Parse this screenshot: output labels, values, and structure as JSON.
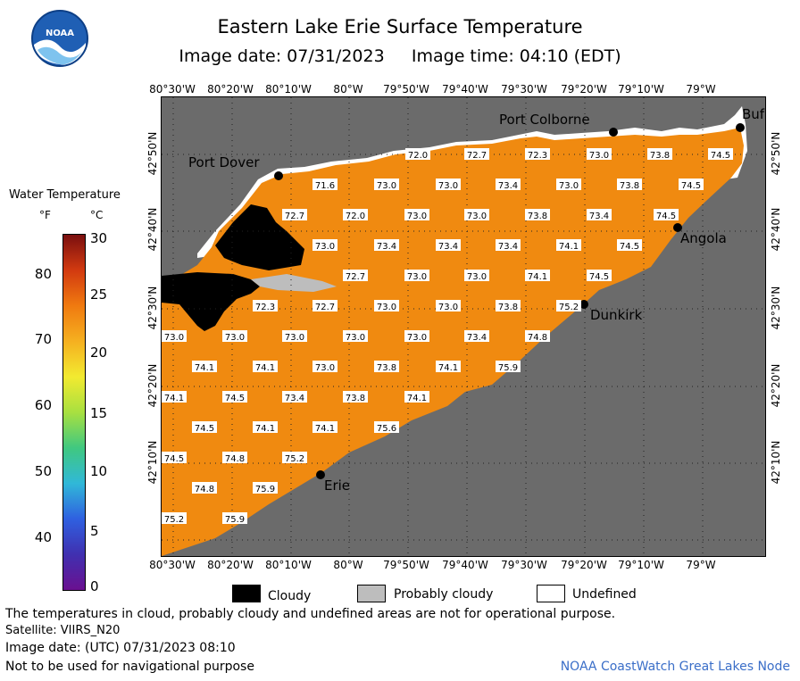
{
  "header": {
    "title": "Eastern Lake Erie Surface Temperature",
    "subtitle": "Image date: 07/31/2023     Image time: 04:10 (EDT)",
    "logo_text": "NOAA"
  },
  "axes": {
    "lon_ticks": [
      "80°30'W",
      "80°20'W",
      "80°10'W",
      "80°W",
      "79°50'W",
      "79°40'W",
      "79°30'W",
      "79°20'W",
      "79°10'W",
      "79°W"
    ],
    "lat_ticks": [
      "42°50'N",
      "42°40'N",
      "42°30'N",
      "42°20'N",
      "42°10'N"
    ]
  },
  "cities": {
    "port_dover": "Port Dover",
    "port_colborne": "Port Colborne",
    "buffalo": "Buf",
    "angola": "Angola",
    "dunkirk": "Dunkirk",
    "erie": "Erie"
  },
  "temperature_labels": [
    "72.0",
    "72.7",
    "72.3",
    "73.0",
    "73.8",
    "74.5",
    "71.6",
    "73.0",
    "73.0",
    "73.4",
    "73.0",
    "73.8",
    "74.5",
    "72.7",
    "72.0",
    "73.0",
    "73.0",
    "73.8",
    "73.4",
    "74.5",
    "73.0",
    "73.4",
    "73.4",
    "73.4",
    "74.1",
    "74.5",
    "72.7",
    "73.0",
    "73.0",
    "74.1",
    "74.5",
    "72.3",
    "72.7",
    "73.0",
    "73.0",
    "73.8",
    "75.2",
    "73.0",
    "73.0",
    "73.0",
    "73.0",
    "73.0",
    "73.4",
    "74.8",
    "74.1",
    "74.1",
    "73.0",
    "73.8",
    "74.1",
    "75.9",
    "74.1",
    "74.5",
    "73.4",
    "73.8",
    "74.1",
    "74.5",
    "74.1",
    "74.1",
    "75.6",
    "74.5",
    "74.8",
    "75.2",
    "74.8",
    "75.9",
    "75.2",
    "75.9"
  ],
  "legend": {
    "title": "Water Temperature",
    "unit_f": "°F",
    "unit_c": "°C",
    "f_ticks": [
      "80",
      "70",
      "60",
      "50",
      "40"
    ],
    "c_ticks": [
      "30",
      "25",
      "20",
      "15",
      "10",
      "5",
      "0"
    ],
    "colors": [
      "#7a0f0f",
      "#d23a10",
      "#f07a10",
      "#f5b020",
      "#f2ea30",
      "#a8e040",
      "#40c880",
      "#30b8d8",
      "#2f60e0",
      "#4030b0",
      "#6a1090"
    ]
  },
  "key": {
    "cloudy": "Cloudy",
    "probably_cloudy": "Probably cloudy",
    "undefined": "Undefined"
  },
  "notes": {
    "line1": "The temperatures in cloud, probably cloudy and undefined areas are not for operational purpose.",
    "line2": "Satellite: VIIRS_N20",
    "line3": "Image date: (UTC) 07/31/2023  08:10",
    "line4": "Not to be used for navigational purpose"
  },
  "credit": "NOAA CoastWatch Great Lakes Node",
  "colors": {
    "land": "#6b6b6b",
    "water": "#f08a10",
    "cloud": "#000000",
    "undefined": "#ffffff",
    "probably_cloudy": "#bdbdbd"
  }
}
